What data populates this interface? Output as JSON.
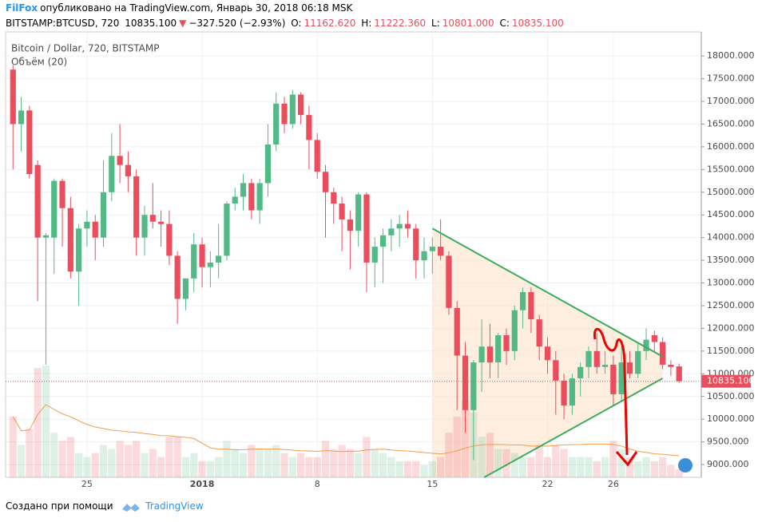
{
  "header": {
    "author": "FilFox",
    "published": "опубликовано на TradingView.com, Январь 30, 2018 06:18 MSK",
    "symbol": "BITSTAMP:BTCUSD, 720",
    "last": "10835.100",
    "arrow": "▼",
    "change": "−327.520 (−2.93%)",
    "o_label": "O:",
    "o": "11162.620",
    "h_label": "H:",
    "h": "11222.360",
    "l_label": "L:",
    "l": "10801.000",
    "c_label": "C:",
    "c": "10835.100"
  },
  "footer": {
    "created": "Создано при помощи",
    "brand": "TradingView"
  },
  "chart_data": {
    "type": "candlestick",
    "title": "Bitcoin / Dollar, 720, BITSTAMP",
    "up_color": "#53b987",
    "down_color": "#eb4d5c",
    "grid": true,
    "xlim": [
      -0.9,
      83.7
    ],
    "ylim": [
      8720,
      18530
    ],
    "xticks": [
      {
        "value": 9,
        "label": "25"
      },
      {
        "value": 23,
        "label": "2018"
      },
      {
        "value": 37,
        "label": "8"
      },
      {
        "value": 51,
        "label": "15"
      },
      {
        "value": 65,
        "label": "22"
      },
      {
        "value": 73,
        "label": "26"
      }
    ],
    "yticks": [
      {
        "value": 9000,
        "label": "9000.000"
      },
      {
        "value": 9500,
        "label": "9500.000"
      },
      {
        "value": 10000,
        "label": "10000.000"
      },
      {
        "value": 10500,
        "label": "10500.000"
      },
      {
        "value": 11000,
        "label": "11000.000"
      },
      {
        "value": 11500,
        "label": "11500.000"
      },
      {
        "value": 12000,
        "label": "12000.000"
      },
      {
        "value": 12500,
        "label": "12500.000"
      },
      {
        "value": 13000,
        "label": "13000.000"
      },
      {
        "value": 13500,
        "label": "13500.000"
      },
      {
        "value": 14000,
        "label": "14000.000"
      },
      {
        "value": 14500,
        "label": "14500.000"
      },
      {
        "value": 15000,
        "label": "15000.000"
      },
      {
        "value": 15500,
        "label": "15500.000"
      },
      {
        "value": 16000,
        "label": "16000.000"
      },
      {
        "value": 16500,
        "label": "16500.000"
      },
      {
        "value": 17000,
        "label": "17000.000"
      },
      {
        "value": 17500,
        "label": "17500.000"
      },
      {
        "value": 18000,
        "label": "18000.000"
      }
    ],
    "last_price": {
      "value": 10835.1,
      "label": "10835.100"
    },
    "ohlc": [
      [
        17700,
        17800,
        15500,
        16500
      ],
      [
        16500,
        17100,
        15900,
        16800
      ],
      [
        16800,
        16900,
        15300,
        15400
      ],
      [
        15600,
        15700,
        12600,
        14000
      ],
      [
        14000,
        14100,
        11200,
        14050
      ],
      [
        14000,
        15300,
        13200,
        15250
      ],
      [
        15250,
        15300,
        13800,
        14650
      ],
      [
        14650,
        14900,
        13100,
        13250
      ],
      [
        13250,
        14300,
        12500,
        14200
      ],
      [
        14200,
        14600,
        13800,
        14350
      ],
      [
        14350,
        14500,
        13500,
        14000
      ],
      [
        14000,
        15700,
        13800,
        15000
      ],
      [
        15000,
        16300,
        14800,
        15800
      ],
      [
        15800,
        16500,
        15200,
        15600
      ],
      [
        15600,
        15900,
        15000,
        15350
      ],
      [
        15350,
        15500,
        13600,
        14000
      ],
      [
        14000,
        14700,
        13600,
        14500
      ],
      [
        14500,
        15200,
        14200,
        14350
      ],
      [
        14350,
        14600,
        13800,
        14300
      ],
      [
        14300,
        14600,
        13400,
        13600
      ],
      [
        13600,
        13700,
        12100,
        12650
      ],
      [
        12650,
        13100,
        12400,
        13100
      ],
      [
        13100,
        14100,
        12800,
        13850
      ],
      [
        13850,
        14000,
        12900,
        13350
      ],
      [
        13350,
        13700,
        12900,
        13450
      ],
      [
        13450,
        14300,
        13100,
        13600
      ],
      [
        13600,
        14800,
        13500,
        14750
      ],
      [
        14750,
        15100,
        14600,
        14900
      ],
      [
        14900,
        15400,
        14600,
        15200
      ],
      [
        15200,
        15300,
        14400,
        14600
      ],
      [
        14600,
        15300,
        14300,
        15200
      ],
      [
        15200,
        16500,
        14900,
        16050
      ],
      [
        16050,
        17200,
        15900,
        16950
      ],
      [
        16950,
        17100,
        16300,
        16500
      ],
      [
        16500,
        17250,
        16400,
        17150
      ],
      [
        17150,
        17200,
        16500,
        16700
      ],
      [
        16700,
        16900,
        15500,
        16150
      ],
      [
        16150,
        16300,
        15300,
        15450
      ],
      [
        15450,
        15600,
        14000,
        15000
      ],
      [
        15000,
        15100,
        14300,
        14750
      ],
      [
        14750,
        14900,
        13700,
        14400
      ],
      [
        14400,
        14600,
        13300,
        14150
      ],
      [
        14150,
        15000,
        13800,
        14950
      ],
      [
        14950,
        15000,
        12800,
        13450
      ],
      [
        13450,
        14000,
        12900,
        13800
      ],
      [
        13800,
        14200,
        13000,
        14050
      ],
      [
        14050,
        14400,
        13700,
        14200
      ],
      [
        14200,
        14500,
        13800,
        14300
      ],
      [
        14300,
        14600,
        14000,
        14200
      ],
      [
        14200,
        14300,
        13100,
        13500
      ],
      [
        13500,
        14000,
        13100,
        13700
      ],
      [
        13700,
        14000,
        13200,
        13800
      ],
      [
        13800,
        14400,
        13500,
        13600
      ],
      [
        13600,
        13700,
        12300,
        12450
      ],
      [
        12450,
        12600,
        10200,
        11400
      ],
      [
        11400,
        11700,
        9700,
        10200
      ],
      [
        10200,
        11300,
        9100,
        11250
      ],
      [
        11250,
        12200,
        10600,
        11600
      ],
      [
        11600,
        12100,
        10900,
        11250
      ],
      [
        11250,
        11900,
        10900,
        11850
      ],
      [
        11850,
        12000,
        11200,
        11500
      ],
      [
        11500,
        12500,
        11300,
        12400
      ],
      [
        12400,
        12900,
        12000,
        12800
      ],
      [
        12800,
        12900,
        11900,
        12200
      ],
      [
        12200,
        12300,
        11300,
        11600
      ],
      [
        11600,
        11800,
        11000,
        11300
      ],
      [
        11300,
        11500,
        10100,
        10850
      ],
      [
        10850,
        11000,
        10000,
        10300
      ],
      [
        10300,
        11000,
        10100,
        10900
      ],
      [
        10900,
        11250,
        10500,
        11150
      ],
      [
        11150,
        11600,
        10900,
        11500
      ],
      [
        11500,
        11900,
        11000,
        11150
      ],
      [
        11150,
        11500,
        11000,
        11200
      ],
      [
        11200,
        11400,
        10300,
        10550
      ],
      [
        10550,
        11600,
        10400,
        11250
      ],
      [
        11250,
        11500,
        10900,
        11000
      ],
      [
        11000,
        11700,
        10900,
        11500
      ],
      [
        11500,
        12000,
        11300,
        11750
      ],
      [
        11850,
        11950,
        11500,
        11700
      ],
      [
        11700,
        11800,
        11100,
        11200
      ],
      [
        11200,
        11300,
        10950,
        11150
      ],
      [
        11162.62,
        11222.36,
        10801,
        10835.1
      ]
    ],
    "volume": {
      "name": "Объём (20)",
      "values": [
        75,
        40,
        60,
        135,
        138,
        55,
        45,
        50,
        30,
        25,
        30,
        40,
        35,
        45,
        40,
        45,
        30,
        35,
        25,
        50,
        50,
        25,
        30,
        20,
        20,
        25,
        45,
        35,
        30,
        40,
        35,
        35,
        40,
        30,
        25,
        30,
        25,
        25,
        45,
        35,
        40,
        35,
        30,
        50,
        35,
        30,
        25,
        20,
        20,
        20,
        15,
        20,
        25,
        55,
        75,
        95,
        80,
        50,
        55,
        35,
        35,
        30,
        25,
        25,
        40,
        25,
        40,
        35,
        25,
        25,
        25,
        20,
        25,
        45,
        35,
        25,
        20,
        25,
        20,
        25,
        15,
        10
      ]
    },
    "trendlines": [
      {
        "color": "#3cab5a",
        "points": [
          [
            51,
            14200
          ],
          [
            79,
            11380
          ]
        ]
      },
      {
        "color": "#3cab5a",
        "points": [
          [
            57.3,
            8720
          ],
          [
            79,
            10900
          ]
        ]
      }
    ]
  }
}
